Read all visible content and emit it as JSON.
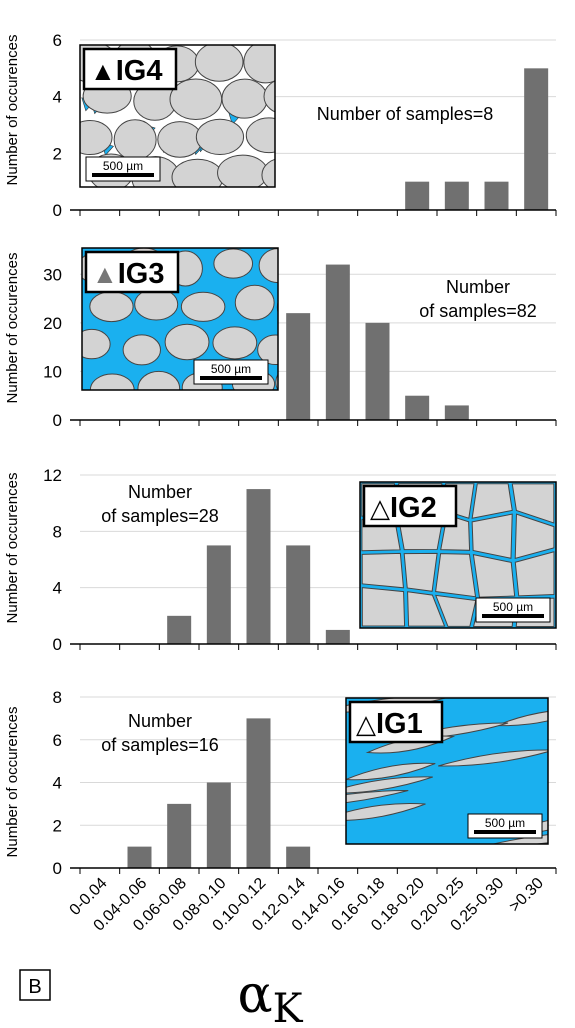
{
  "figure": {
    "panel_letter": "B",
    "xlabel_symbol": "α",
    "xlabel_subscript": "K",
    "bar_color": "#707070",
    "pore_color": "#1ab0ef",
    "grain_color": "#d3d3d3"
  },
  "chart_data": [
    {
      "type": "bar",
      "ylabel": "Number of occurences",
      "ylim": [
        0,
        6
      ],
      "yticks": [
        0,
        2,
        4,
        6
      ],
      "categories": [
        "0-0.04",
        "0.04-0.06",
        "0.06-0.08",
        "0.08-0.10",
        "0.10-0.12",
        "0.12-0.14",
        "0.14-0.16",
        "0.16-0.18",
        "0.18-0.20",
        "0.20-0.25",
        "0.25-0.30",
        ">0.30"
      ],
      "values": [
        0,
        0,
        0,
        0,
        0,
        0,
        0,
        0,
        1,
        1,
        1,
        5
      ],
      "annotation_lines": [
        "Number of samples=8"
      ],
      "inset": {
        "marker": "▲",
        "label": "IG4",
        "scale": "500 µm",
        "texture": "packed-grains"
      }
    },
    {
      "type": "bar",
      "ylabel": "Number of occurences",
      "ylim": [
        0,
        35
      ],
      "yticks": [
        0,
        10,
        20,
        30
      ],
      "categories": [
        "0-0.04",
        "0.04-0.06",
        "0.06-0.08",
        "0.08-0.10",
        "0.10-0.12",
        "0.12-0.14",
        "0.14-0.16",
        "0.16-0.18",
        "0.18-0.20",
        "0.20-0.25",
        "0.25-0.30",
        ">0.30"
      ],
      "values": [
        0,
        0,
        0,
        0,
        0,
        22,
        32,
        20,
        5,
        3,
        0,
        0
      ],
      "annotation_lines": [
        "Number",
        "of samples=82"
      ],
      "inset": {
        "marker": "▲",
        "label": "IG3",
        "scale": "500 µm",
        "texture": "floating-grains"
      }
    },
    {
      "type": "bar",
      "ylabel": "Number of occurences",
      "ylim": [
        0,
        12
      ],
      "yticks": [
        0,
        4,
        8,
        12
      ],
      "categories": [
        "0-0.04",
        "0.04-0.06",
        "0.06-0.08",
        "0.08-0.10",
        "0.10-0.12",
        "0.12-0.14",
        "0.14-0.16",
        "0.16-0.18",
        "0.18-0.20",
        "0.20-0.25",
        "0.25-0.30",
        ">0.30"
      ],
      "values": [
        0,
        0,
        2,
        7,
        11,
        7,
        1,
        0,
        0,
        0,
        0,
        0
      ],
      "annotation_lines": [
        "Number",
        "of samples=28"
      ],
      "inset": {
        "marker": "△",
        "label": "IG2",
        "scale": "500 µm",
        "texture": "polygonal-grains"
      }
    },
    {
      "type": "bar",
      "ylabel": "Number of occurences",
      "ylim": [
        0,
        8
      ],
      "yticks": [
        0,
        2,
        4,
        6,
        8
      ],
      "categories": [
        "0-0.04",
        "0.04-0.06",
        "0.06-0.08",
        "0.08-0.10",
        "0.10-0.12",
        "0.12-0.14",
        "0.14-0.16",
        "0.16-0.18",
        "0.18-0.20",
        "0.20-0.25",
        "0.25-0.30",
        ">0.30"
      ],
      "values": [
        0,
        1,
        3,
        4,
        7,
        1,
        0,
        0,
        0,
        0,
        0,
        0
      ],
      "annotation_lines": [
        "Number",
        "of samples=16"
      ],
      "inset": {
        "marker": "△",
        "label": "IG1",
        "scale": "500 µm",
        "texture": "elongated-grains"
      }
    }
  ]
}
